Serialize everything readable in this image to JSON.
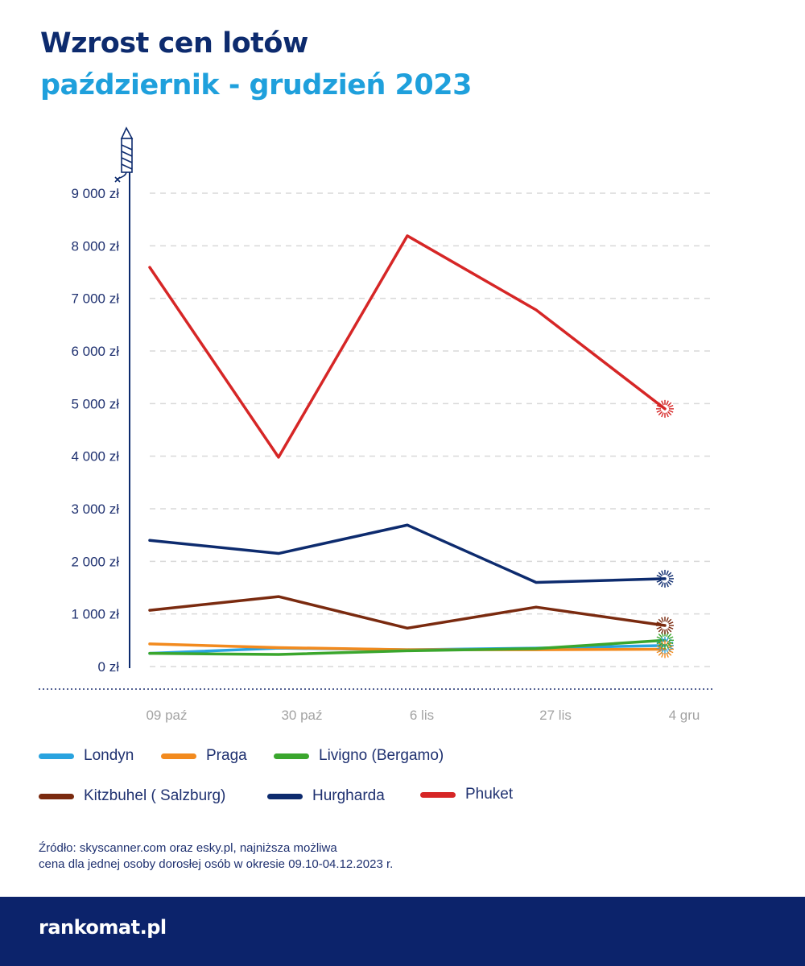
{
  "title": "Wzrost cen lotów",
  "subtitle": "październik - grudzień 2023",
  "chart_data": {
    "type": "line",
    "categories": [
      "09 paź",
      "30 paź",
      "6 lis",
      "27 lis",
      "4 gru"
    ],
    "y_ticks": [
      "0 zł",
      "1 000 zł",
      "2 000 zł",
      "3 000 zł",
      "4 000 zł",
      "5 000 zł",
      "6 000 zł",
      "7 000 zł",
      "8 000 zł",
      "9 000 zł"
    ],
    "ylim": [
      0,
      9000
    ],
    "grid": true,
    "legend_position": "bottom",
    "series": [
      {
        "name": "Londyn",
        "color": "#29a3df",
        "values": [
          250,
          350,
          320,
          350,
          400
        ]
      },
      {
        "name": "Praga",
        "color": "#f28a1e",
        "values": [
          430,
          360,
          320,
          320,
          330
        ]
      },
      {
        "name": "Livigno (Bergamo)",
        "color": "#3aa62d",
        "values": [
          250,
          230,
          300,
          340,
          500
        ]
      },
      {
        "name": "Kitzbuhel ( Salzburg)",
        "color": "#7a2a0f",
        "values": [
          1070,
          1330,
          730,
          1130,
          780
        ]
      },
      {
        "name": "Hurgharda",
        "color": "#0d2b6e",
        "values": [
          2400,
          2150,
          2690,
          1600,
          1670
        ]
      },
      {
        "name": "Phuket",
        "color": "#d62626",
        "values": [
          7590,
          3980,
          8190,
          6780,
          4900
        ]
      }
    ]
  },
  "source_lines": [
    "Źródło: skyscanner.com oraz esky.pl, najniższa możliwa",
    "cena dla jednej osoby dorosłej osób w okresie 09.10-04.12.2023 r."
  ],
  "footer": {
    "brand": "rankomat.pl",
    "brand_color": "#0c236b"
  }
}
